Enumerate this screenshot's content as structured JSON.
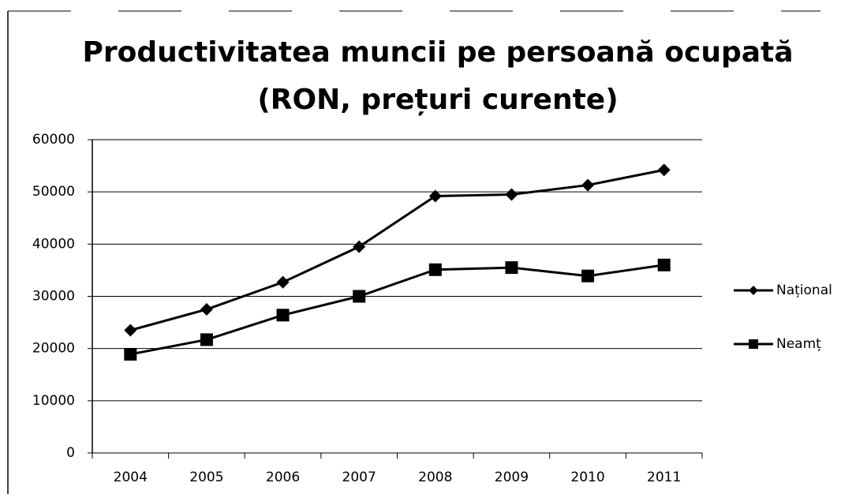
{
  "chart_data": {
    "type": "line",
    "title": [
      "Productivitatea muncii pe persoană ocupată",
      "(RON, prețuri curente)"
    ],
    "categories": [
      "2004",
      "2005",
      "2006",
      "2007",
      "2008",
      "2009",
      "2010",
      "2011"
    ],
    "series": [
      {
        "name": "Național",
        "color": "#000000",
        "marker": "diamond",
        "values": [
          23500,
          27500,
          32700,
          39500,
          49200,
          49500,
          51300,
          54200
        ]
      },
      {
        "name": "Neamț",
        "color": "#000000",
        "marker": "square",
        "values": [
          18900,
          21700,
          26400,
          30000,
          35100,
          35500,
          33900,
          36000
        ]
      }
    ],
    "ylim": [
      0,
      60000
    ],
    "yticks": [
      0,
      10000,
      20000,
      30000,
      40000,
      50000,
      60000
    ],
    "grid": true,
    "legend": "right"
  }
}
